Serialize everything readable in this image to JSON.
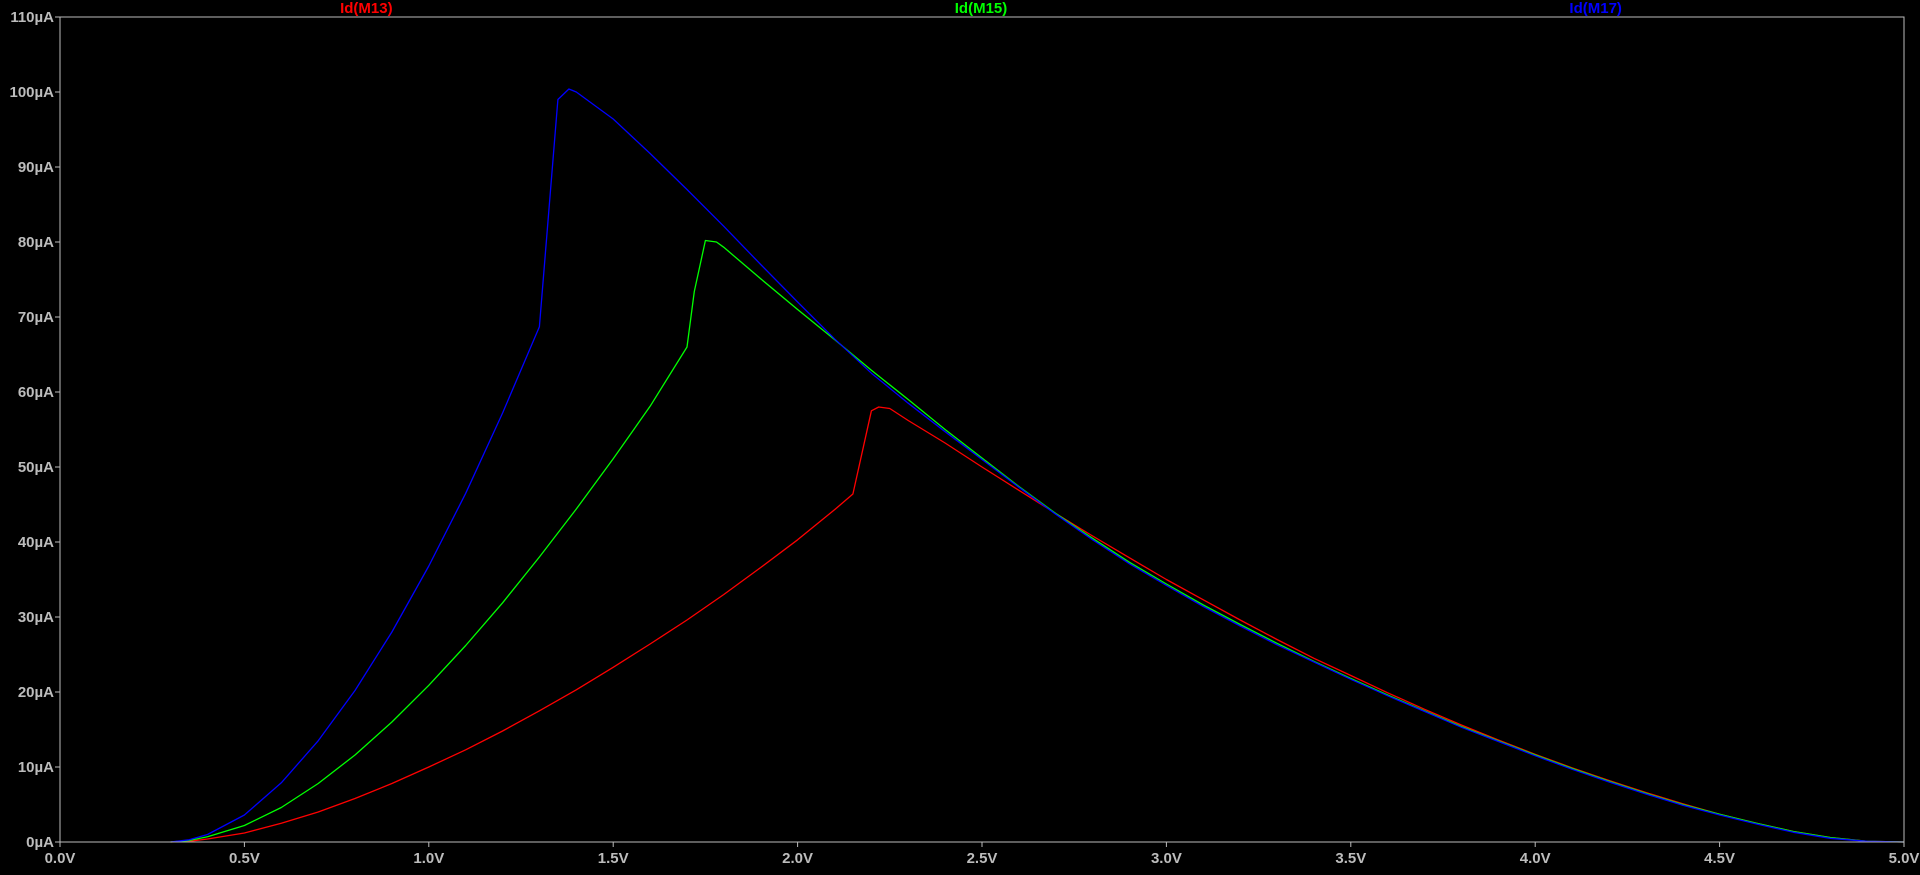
{
  "chart_data": {
    "type": "line",
    "xlabel": "",
    "ylabel": "",
    "xlim": [
      0,
      5
    ],
    "ylim": [
      0,
      110
    ],
    "grid": false,
    "legend_placement": "top",
    "colors": {
      "background": "#000000",
      "frame": "#bcbcbc",
      "tick_label": "#bcbcbc"
    },
    "x_ticks": [
      {
        "value": 0.0,
        "label": "0.0V"
      },
      {
        "value": 0.5,
        "label": "0.5V"
      },
      {
        "value": 1.0,
        "label": "1.0V"
      },
      {
        "value": 1.5,
        "label": "1.5V"
      },
      {
        "value": 2.0,
        "label": "2.0V"
      },
      {
        "value": 2.5,
        "label": "2.5V"
      },
      {
        "value": 3.0,
        "label": "3.0V"
      },
      {
        "value": 3.5,
        "label": "3.5V"
      },
      {
        "value": 4.0,
        "label": "4.0V"
      },
      {
        "value": 4.5,
        "label": "4.5V"
      },
      {
        "value": 5.0,
        "label": "5.0V"
      }
    ],
    "y_ticks": [
      {
        "value": 0,
        "label": "0µA"
      },
      {
        "value": 10,
        "label": "10µA"
      },
      {
        "value": 20,
        "label": "20µA"
      },
      {
        "value": 30,
        "label": "30µA"
      },
      {
        "value": 40,
        "label": "40µA"
      },
      {
        "value": 50,
        "label": "50µA"
      },
      {
        "value": 60,
        "label": "60µA"
      },
      {
        "value": 70,
        "label": "70µA"
      },
      {
        "value": 80,
        "label": "80µA"
      },
      {
        "value": 90,
        "label": "90µA"
      },
      {
        "value": 100,
        "label": "100µA"
      },
      {
        "value": 110,
        "label": "110µA"
      }
    ],
    "series": [
      {
        "name": "Id(M13)",
        "color": "#ff0000",
        "points": [
          [
            0.3,
            0
          ],
          [
            0.35,
            0.1
          ],
          [
            0.4,
            0.4
          ],
          [
            0.5,
            1.2
          ],
          [
            0.6,
            2.5
          ],
          [
            0.7,
            4.0
          ],
          [
            0.8,
            5.8
          ],
          [
            0.9,
            7.8
          ],
          [
            1.0,
            10.0
          ],
          [
            1.1,
            12.3
          ],
          [
            1.2,
            14.8
          ],
          [
            1.3,
            17.5
          ],
          [
            1.4,
            20.3
          ],
          [
            1.5,
            23.3
          ],
          [
            1.6,
            26.4
          ],
          [
            1.7,
            29.6
          ],
          [
            1.8,
            33.0
          ],
          [
            1.9,
            36.6
          ],
          [
            2.0,
            40.3
          ],
          [
            2.1,
            44.3
          ],
          [
            2.15,
            46.4
          ],
          [
            2.2,
            57.5
          ],
          [
            2.22,
            58.0
          ],
          [
            2.25,
            57.8
          ],
          [
            2.3,
            56.2
          ],
          [
            2.4,
            53.2
          ],
          [
            2.5,
            50.0
          ],
          [
            2.6,
            46.9
          ],
          [
            2.7,
            43.8
          ],
          [
            2.8,
            40.8
          ],
          [
            2.9,
            37.9
          ],
          [
            3.0,
            35.0
          ],
          [
            3.1,
            32.3
          ],
          [
            3.2,
            29.6
          ],
          [
            3.3,
            27.0
          ],
          [
            3.4,
            24.5
          ],
          [
            3.5,
            22.2
          ],
          [
            3.6,
            19.9
          ],
          [
            3.7,
            17.7
          ],
          [
            3.8,
            15.6
          ],
          [
            3.9,
            13.6
          ],
          [
            4.0,
            11.7
          ],
          [
            4.1,
            9.9
          ],
          [
            4.2,
            8.2
          ],
          [
            4.3,
            6.6
          ],
          [
            4.4,
            5.1
          ],
          [
            4.5,
            3.7
          ],
          [
            4.6,
            2.5
          ],
          [
            4.7,
            1.4
          ],
          [
            4.8,
            0.6
          ],
          [
            4.9,
            0.1
          ],
          [
            5.0,
            0
          ]
        ]
      },
      {
        "name": "Id(M15)",
        "color": "#00ff00",
        "points": [
          [
            0.3,
            0
          ],
          [
            0.35,
            0.2
          ],
          [
            0.4,
            0.7
          ],
          [
            0.5,
            2.2
          ],
          [
            0.6,
            4.6
          ],
          [
            0.7,
            7.8
          ],
          [
            0.8,
            11.6
          ],
          [
            0.9,
            16.0
          ],
          [
            1.0,
            20.9
          ],
          [
            1.1,
            26.2
          ],
          [
            1.2,
            31.9
          ],
          [
            1.3,
            38.0
          ],
          [
            1.4,
            44.4
          ],
          [
            1.5,
            51.1
          ],
          [
            1.6,
            58.1
          ],
          [
            1.7,
            66.0
          ],
          [
            1.72,
            73.4
          ],
          [
            1.75,
            80.2
          ],
          [
            1.78,
            80.0
          ],
          [
            1.8,
            79.3
          ],
          [
            1.9,
            75.1
          ],
          [
            2.0,
            71.0
          ],
          [
            2.1,
            67.0
          ],
          [
            2.2,
            62.9
          ],
          [
            2.3,
            59.0
          ],
          [
            2.4,
            55.0
          ],
          [
            2.5,
            51.2
          ],
          [
            2.6,
            47.4
          ],
          [
            2.7,
            43.8
          ],
          [
            2.8,
            40.5
          ],
          [
            2.9,
            37.3
          ],
          [
            3.0,
            34.4
          ],
          [
            3.1,
            31.6
          ],
          [
            3.2,
            29.0
          ],
          [
            3.3,
            26.5
          ],
          [
            3.4,
            24.1
          ],
          [
            3.5,
            21.8
          ],
          [
            3.6,
            19.6
          ],
          [
            3.7,
            17.5
          ],
          [
            3.8,
            15.4
          ],
          [
            3.9,
            13.5
          ],
          [
            4.0,
            11.6
          ],
          [
            4.1,
            9.8
          ],
          [
            4.2,
            8.1
          ],
          [
            4.3,
            6.5
          ],
          [
            4.4,
            5.0
          ],
          [
            4.5,
            3.7
          ],
          [
            4.6,
            2.5
          ],
          [
            4.7,
            1.4
          ],
          [
            4.8,
            0.6
          ],
          [
            4.9,
            0.1
          ],
          [
            5.0,
            0
          ]
        ]
      },
      {
        "name": "Id(M17)",
        "color": "#0000ff",
        "points": [
          [
            0.3,
            0
          ],
          [
            0.35,
            0.3
          ],
          [
            0.4,
            1.0
          ],
          [
            0.5,
            3.6
          ],
          [
            0.6,
            7.9
          ],
          [
            0.7,
            13.5
          ],
          [
            0.8,
            20.2
          ],
          [
            0.9,
            28.0
          ],
          [
            1.0,
            36.8
          ],
          [
            1.1,
            46.5
          ],
          [
            1.2,
            57.2
          ],
          [
            1.3,
            68.7
          ],
          [
            1.35,
            99.0
          ],
          [
            1.38,
            100.4
          ],
          [
            1.4,
            100.0
          ],
          [
            1.5,
            96.4
          ],
          [
            1.6,
            91.8
          ],
          [
            1.7,
            87.0
          ],
          [
            1.8,
            82.1
          ],
          [
            1.9,
            77.0
          ],
          [
            2.0,
            72.0
          ],
          [
            2.1,
            67.1
          ],
          [
            2.2,
            62.5
          ],
          [
            2.3,
            58.5
          ],
          [
            2.4,
            54.7
          ],
          [
            2.5,
            51.0
          ],
          [
            2.6,
            47.3
          ],
          [
            2.7,
            43.7
          ],
          [
            2.8,
            40.3
          ],
          [
            2.9,
            37.1
          ],
          [
            3.0,
            34.2
          ],
          [
            3.1,
            31.4
          ],
          [
            3.2,
            28.8
          ],
          [
            3.3,
            26.3
          ],
          [
            3.4,
            24.0
          ],
          [
            3.5,
            21.7
          ],
          [
            3.6,
            19.5
          ],
          [
            3.7,
            17.4
          ],
          [
            3.8,
            15.3
          ],
          [
            3.9,
            13.4
          ],
          [
            4.0,
            11.5
          ],
          [
            4.1,
            9.7
          ],
          [
            4.2,
            8.0
          ],
          [
            4.3,
            6.4
          ],
          [
            4.4,
            4.9
          ],
          [
            4.5,
            3.6
          ],
          [
            4.6,
            2.4
          ],
          [
            4.7,
            1.3
          ],
          [
            4.8,
            0.5
          ],
          [
            4.9,
            0.1
          ],
          [
            5.0,
            0
          ]
        ]
      }
    ]
  }
}
